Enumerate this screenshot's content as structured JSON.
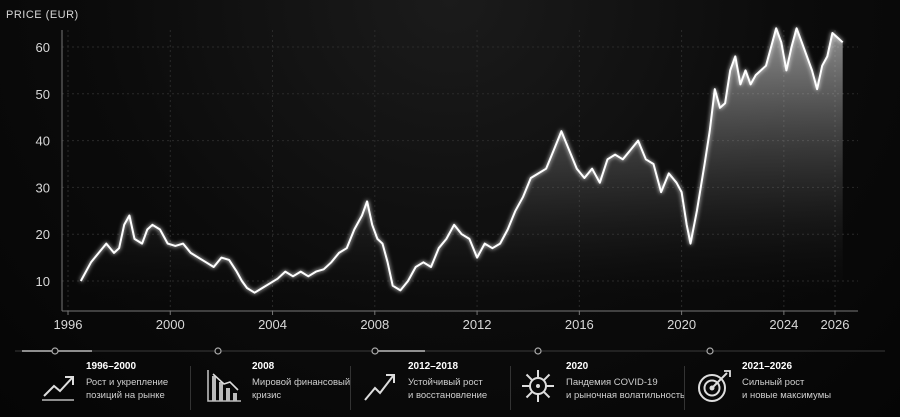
{
  "colors": {
    "background": "#060606",
    "line": "#ffffff",
    "grid": "#2a2a2a"
  },
  "chart_data": {
    "type": "area",
    "ylabel": "PRICE (EUR)",
    "xlim": [
      1996,
      2026
    ],
    "ylim": [
      5,
      65
    ],
    "x_ticks": [
      1996,
      2000,
      2004,
      2008,
      2012,
      2016,
      2020,
      2024,
      2026
    ],
    "x_tick_labels": [
      "1996",
      "2000",
      "2004",
      "2008",
      "2012",
      "2016",
      "2020",
      "2024",
      "2026"
    ],
    "y_ticks": [
      10,
      20,
      30,
      40,
      50,
      60
    ],
    "y_tick_labels": [
      "10",
      "20",
      "30",
      "40",
      "50",
      "60"
    ],
    "grid": true,
    "series": [
      {
        "values": [
          [
            1996.5,
            10
          ],
          [
            1996.9,
            14
          ],
          [
            1997.2,
            16
          ],
          [
            1997.5,
            18
          ],
          [
            1997.8,
            16
          ],
          [
            1998.0,
            17
          ],
          [
            1998.2,
            22
          ],
          [
            1998.4,
            24
          ],
          [
            1998.6,
            19
          ],
          [
            1998.9,
            18
          ],
          [
            1999.1,
            21
          ],
          [
            1999.3,
            22
          ],
          [
            1999.6,
            21
          ],
          [
            1999.9,
            18
          ],
          [
            2000.2,
            17.5
          ],
          [
            2000.5,
            18
          ],
          [
            2000.8,
            16
          ],
          [
            2001.1,
            15
          ],
          [
            2001.4,
            14
          ],
          [
            2001.7,
            13
          ],
          [
            2002.0,
            15
          ],
          [
            2002.3,
            14.5
          ],
          [
            2002.6,
            12
          ],
          [
            2002.8,
            10
          ],
          [
            2003.0,
            8.5
          ],
          [
            2003.3,
            7.5
          ],
          [
            2003.6,
            8.5
          ],
          [
            2003.9,
            9.5
          ],
          [
            2004.2,
            10.5
          ],
          [
            2004.5,
            12
          ],
          [
            2004.8,
            11
          ],
          [
            2005.1,
            12
          ],
          [
            2005.4,
            11
          ],
          [
            2005.7,
            12
          ],
          [
            2006.0,
            12.5
          ],
          [
            2006.3,
            14
          ],
          [
            2006.6,
            16
          ],
          [
            2006.9,
            17
          ],
          [
            2007.2,
            21
          ],
          [
            2007.5,
            24
          ],
          [
            2007.7,
            27
          ],
          [
            2007.9,
            22
          ],
          [
            2008.1,
            19
          ],
          [
            2008.3,
            18
          ],
          [
            2008.5,
            14
          ],
          [
            2008.7,
            9
          ],
          [
            2009.0,
            8
          ],
          [
            2009.3,
            10
          ],
          [
            2009.6,
            13
          ],
          [
            2009.9,
            14
          ],
          [
            2010.2,
            13
          ],
          [
            2010.5,
            17
          ],
          [
            2010.8,
            19
          ],
          [
            2011.1,
            22
          ],
          [
            2011.4,
            20
          ],
          [
            2011.7,
            19
          ],
          [
            2012.0,
            15
          ],
          [
            2012.3,
            18
          ],
          [
            2012.6,
            17
          ],
          [
            2012.9,
            18
          ],
          [
            2013.2,
            21
          ],
          [
            2013.5,
            25
          ],
          [
            2013.8,
            28
          ],
          [
            2014.1,
            32
          ],
          [
            2014.4,
            33
          ],
          [
            2014.7,
            34
          ],
          [
            2015.0,
            38
          ],
          [
            2015.3,
            42
          ],
          [
            2015.6,
            38
          ],
          [
            2015.9,
            34
          ],
          [
            2016.2,
            32
          ],
          [
            2016.5,
            34
          ],
          [
            2016.8,
            31
          ],
          [
            2017.1,
            36
          ],
          [
            2017.4,
            37
          ],
          [
            2017.7,
            36
          ],
          [
            2018.0,
            38
          ],
          [
            2018.3,
            40
          ],
          [
            2018.6,
            36
          ],
          [
            2018.9,
            35
          ],
          [
            2019.2,
            29
          ],
          [
            2019.5,
            33
          ],
          [
            2019.8,
            31
          ],
          [
            2020.0,
            29
          ],
          [
            2020.2,
            22
          ],
          [
            2020.35,
            18
          ],
          [
            2020.6,
            25
          ],
          [
            2020.9,
            35
          ],
          [
            2021.1,
            42
          ],
          [
            2021.3,
            51
          ],
          [
            2021.5,
            47
          ],
          [
            2021.7,
            48
          ],
          [
            2021.9,
            55
          ],
          [
            2022.1,
            58
          ],
          [
            2022.3,
            52
          ],
          [
            2022.5,
            55
          ],
          [
            2022.7,
            52
          ],
          [
            2022.9,
            54
          ],
          [
            2023.1,
            55
          ],
          [
            2023.3,
            56
          ],
          [
            2023.5,
            60
          ],
          [
            2023.7,
            64
          ],
          [
            2023.9,
            61
          ],
          [
            2024.1,
            55
          ],
          [
            2024.3,
            60
          ],
          [
            2024.5,
            64
          ],
          [
            2024.7,
            61
          ],
          [
            2024.9,
            58
          ],
          [
            2025.1,
            55
          ],
          [
            2025.3,
            51
          ],
          [
            2025.5,
            56
          ],
          [
            2025.7,
            58
          ],
          [
            2025.9,
            63
          ],
          [
            2026.1,
            62
          ],
          [
            2026.3,
            61
          ]
        ]
      }
    ]
  },
  "timeline": [
    {
      "title": "1996–2000",
      "line1": "Рост и укрепление",
      "line2": "позиций на рынке",
      "icon": "growth-chart-icon"
    },
    {
      "title": "2008",
      "line1": "Мировой финансовый",
      "line2": "кризис",
      "icon": "declining-bars-icon"
    },
    {
      "title": "2012–2018",
      "line1": "Устойчивый рост",
      "line2": "и восстановление",
      "icon": "rising-arrow-icon"
    },
    {
      "title": "2020",
      "line1": "Пандемия COVID-19",
      "line2": "и рыночная волатильность",
      "icon": "virus-icon"
    },
    {
      "title": "2021–2026",
      "line1": "Сильный рост",
      "line2": "и новые максимумы",
      "icon": "target-icon"
    }
  ]
}
